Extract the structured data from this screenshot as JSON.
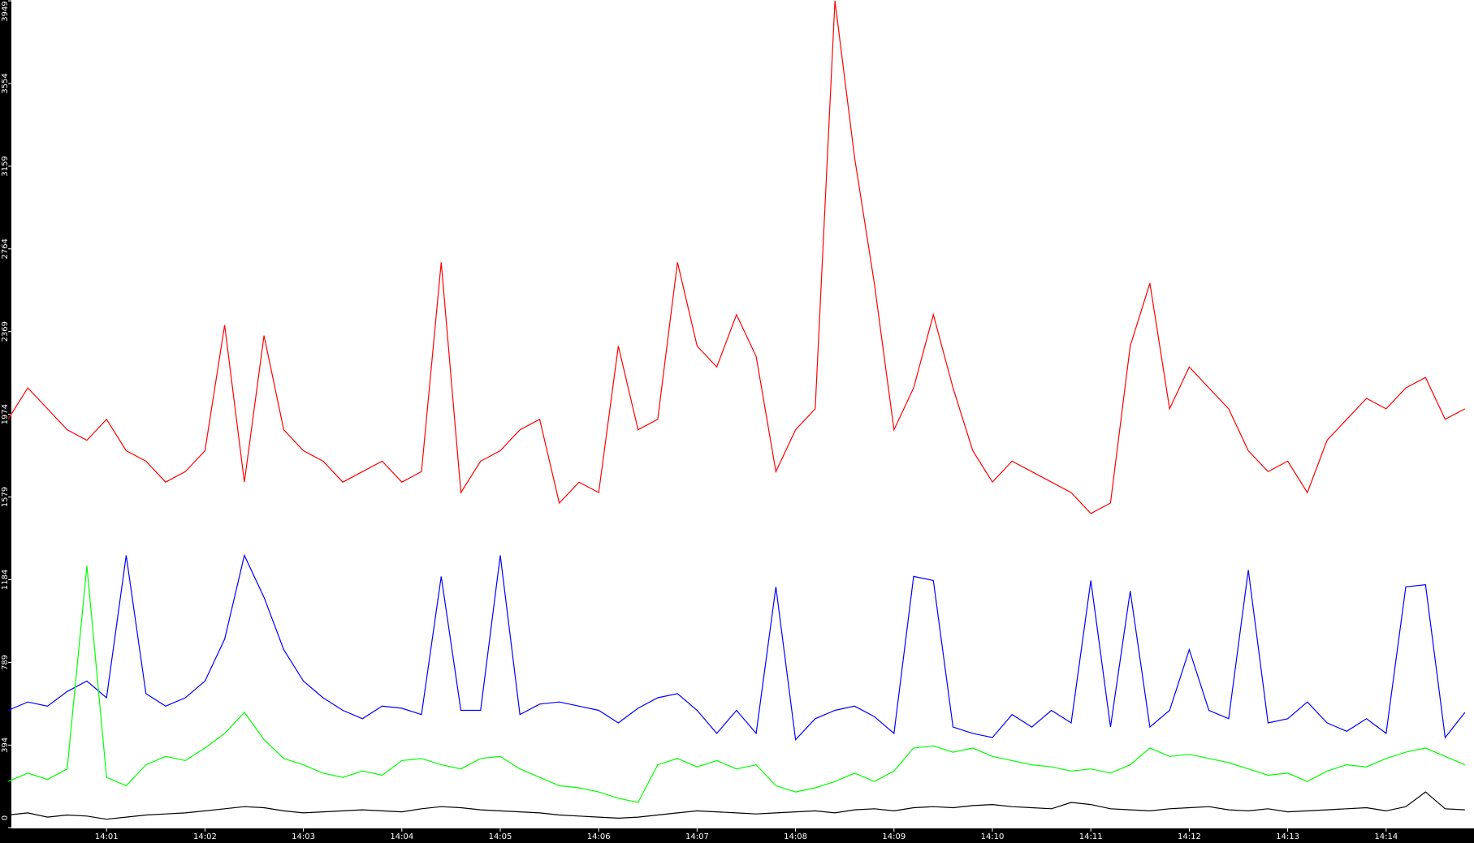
{
  "chart_data": {
    "type": "line",
    "categories": [
      null,
      null,
      null,
      null,
      null,
      "14:01",
      null,
      null,
      null,
      null,
      "14:02",
      null,
      null,
      null,
      null,
      "14:03",
      null,
      null,
      null,
      null,
      "14:04",
      null,
      null,
      null,
      null,
      "14:05",
      null,
      null,
      null,
      null,
      "14:06",
      null,
      null,
      null,
      null,
      "14:07",
      null,
      null,
      null,
      null,
      "14:08",
      null,
      null,
      null,
      null,
      "14:09",
      null,
      null,
      null,
      null,
      "14:10",
      null,
      null,
      null,
      null,
      "14:11",
      null,
      null,
      null,
      null,
      "14:12",
      null,
      null,
      null,
      null,
      "14:13",
      null,
      null,
      null,
      null,
      "14:14",
      null,
      null,
      null,
      null
    ],
    "ylim": [
      0,
      3949
    ],
    "yticks": [
      0,
      394,
      789,
      1184,
      1579,
      1974,
      2369,
      2764,
      3159,
      3554,
      3949
    ],
    "series": [
      {
        "color": "#ff0000",
        "values": [
          1950,
          2100,
          2000,
          1900,
          1850,
          1950,
          1800,
          1750,
          1650,
          1700,
          1800,
          2400,
          1650,
          2350,
          1900,
          1800,
          1750,
          1650,
          1700,
          1750,
          1650,
          1700,
          2700,
          1600,
          1750,
          1800,
          1900,
          1950,
          1550,
          1650,
          1600,
          2300,
          1900,
          1950,
          2700,
          2300,
          2200,
          2450,
          2250,
          1700,
          1900,
          2000,
          3949,
          3200,
          2600,
          1900,
          2100,
          2450,
          2100,
          1800,
          1650,
          1750,
          1700,
          1650,
          1600,
          1500,
          1550,
          2300,
          2600,
          2000,
          2200,
          2100,
          2000,
          1800,
          1700,
          1750,
          1600,
          1850,
          1950,
          2050,
          2000,
          2100,
          2150,
          1950,
          2000
        ]
      },
      {
        "color": "#0000ff",
        "values": [
          560,
          600,
          580,
          650,
          700,
          620,
          1300,
          640,
          580,
          620,
          700,
          900,
          1300,
          1100,
          850,
          700,
          620,
          560,
          520,
          580,
          570,
          540,
          1200,
          560,
          560,
          1300,
          540,
          590,
          600,
          580,
          560,
          500,
          570,
          620,
          640,
          560,
          450,
          560,
          450,
          1150,
          420,
          520,
          560,
          580,
          530,
          450,
          1200,
          1180,
          480,
          450,
          430,
          540,
          480,
          560,
          500,
          1180,
          480,
          1130,
          480,
          560,
          850,
          560,
          520,
          1230,
          500,
          520,
          600,
          500,
          460,
          520,
          450,
          1150,
          1160,
          430,
          550
        ]
      },
      {
        "color": "#00ff00",
        "values": [
          220,
          260,
          230,
          280,
          1250,
          240,
          200,
          300,
          340,
          320,
          380,
          450,
          550,
          420,
          330,
          300,
          260,
          240,
          270,
          250,
          320,
          330,
          300,
          280,
          330,
          340,
          280,
          240,
          200,
          190,
          170,
          140,
          120,
          300,
          330,
          290,
          320,
          280,
          300,
          200,
          170,
          190,
          220,
          260,
          220,
          270,
          380,
          390,
          360,
          380,
          340,
          320,
          300,
          290,
          270,
          280,
          260,
          300,
          380,
          340,
          350,
          330,
          310,
          280,
          250,
          260,
          220,
          270,
          300,
          290,
          330,
          360,
          380,
          340,
          300
        ]
      },
      {
        "color": "#000000",
        "values": [
          60,
          70,
          50,
          60,
          55,
          40,
          50,
          60,
          65,
          70,
          80,
          90,
          100,
          95,
          80,
          70,
          75,
          80,
          85,
          80,
          75,
          90,
          100,
          95,
          85,
          80,
          75,
          70,
          60,
          55,
          50,
          45,
          50,
          60,
          70,
          80,
          75,
          70,
          65,
          70,
          75,
          80,
          70,
          85,
          90,
          80,
          95,
          100,
          95,
          105,
          110,
          100,
          95,
          90,
          120,
          110,
          90,
          85,
          80,
          90,
          95,
          100,
          85,
          80,
          90,
          75,
          80,
          85,
          90,
          95,
          80,
          100,
          170,
          90,
          85
        ]
      }
    ]
  }
}
